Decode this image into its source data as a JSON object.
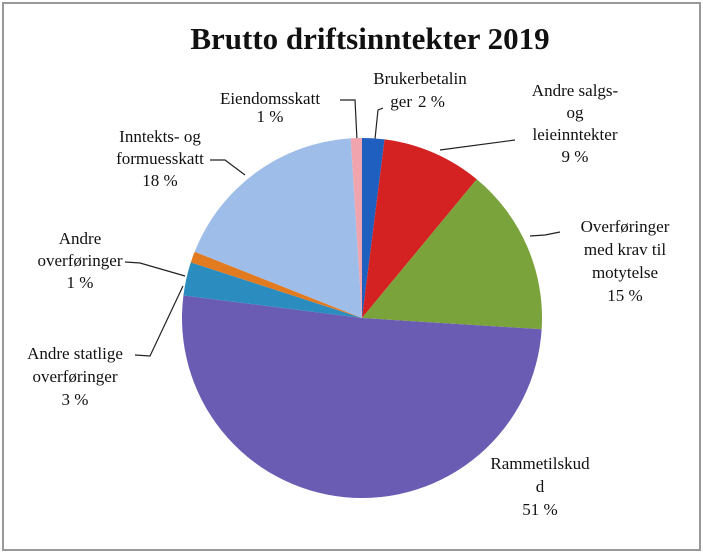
{
  "chart_data": {
    "type": "pie",
    "title": "Brutto driftsinntekter 2019",
    "categories": [
      [
        "Brukerbetalin",
        "ger"
      ],
      [
        "Andre salgs-",
        "og",
        "leieinntekter"
      ],
      [
        "Overføringer",
        "med krav til",
        "motytelse"
      ],
      [
        "Rammetilskud",
        "d"
      ],
      [
        "Andre statlige",
        "overføringer"
      ],
      [
        "Andre",
        "overføringer"
      ],
      [
        "Inntekts- og",
        "formuesskatt"
      ],
      [
        "Eiendomsskatt"
      ]
    ],
    "values": [
      2,
      9,
      15,
      51,
      3,
      1,
      18,
      1
    ],
    "value_labels": [
      "2 %",
      "9 %",
      "15 %",
      "51 %",
      "3 %",
      "1 %",
      "18 %",
      "1 %"
    ],
    "colors": [
      "#1f5fbf",
      "#d42222",
      "#7ba33b",
      "#6a5bb3",
      "#2b8cc0",
      "#e27a1f",
      "#9ebde9",
      "#f0a4ad"
    ]
  }
}
